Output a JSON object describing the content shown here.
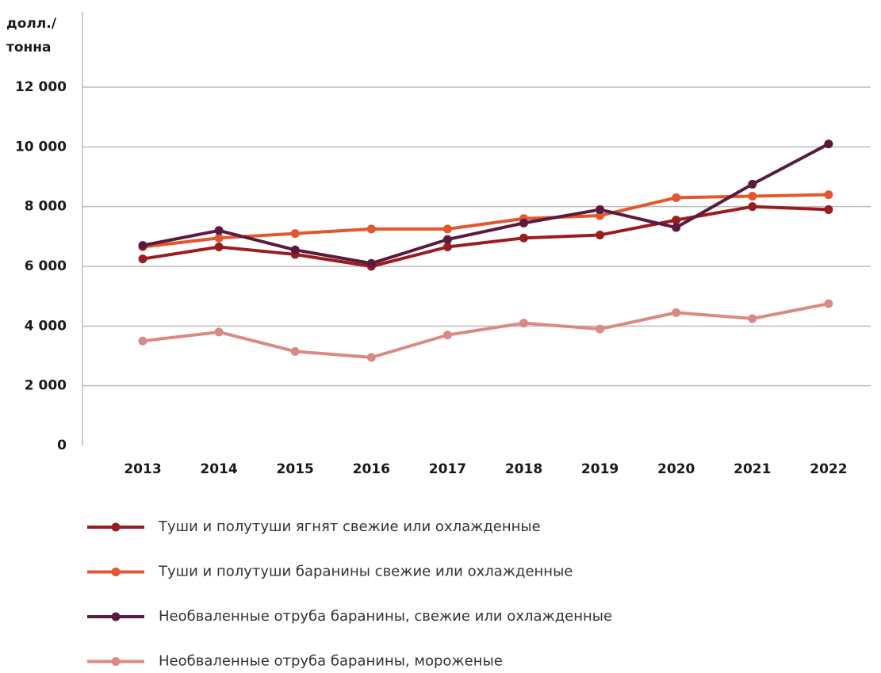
{
  "chart_data": {
    "type": "line",
    "ylabel": [
      "долл./",
      "тонна"
    ],
    "categories": [
      "2013",
      "2014",
      "2015",
      "2016",
      "2017",
      "2018",
      "2019",
      "2020",
      "2021",
      "2022"
    ],
    "series": [
      {
        "name": "Туши и полутуши ягнят свежие или охлажденные",
        "color": "#9b1c20",
        "values": [
          6250,
          6650,
          6400,
          6000,
          6650,
          6950,
          7050,
          7550,
          8000,
          7900
        ]
      },
      {
        "name": "Туши и полутуши баранины свежие или охлажденные",
        "color": "#e2572c",
        "values": [
          6650,
          6950,
          7100,
          7250,
          7250,
          7600,
          7700,
          8300,
          8350,
          8400
        ]
      },
      {
        "name": "Необваленные отруба баранины, свежие или охлажденные",
        "color": "#5a1a3e",
        "values": [
          6700,
          7200,
          6550,
          6100,
          6900,
          7450,
          7900,
          7300,
          8750,
          10100
        ]
      },
      {
        "name": "Необваленные отруба баранины, мороженые",
        "color": "#d98a84",
        "values": [
          3500,
          3800,
          3150,
          2950,
          3700,
          4100,
          3900,
          4450,
          4250,
          4750
        ]
      }
    ],
    "ylim": [
      0,
      12000
    ],
    "yticks": [
      0,
      {
        "value": 2000,
        "label": "2 000"
      },
      {
        "value": 4000,
        "label": "4 000"
      },
      {
        "value": 6000,
        "label": "6 000"
      },
      {
        "value": 8000,
        "label": "8 000"
      },
      {
        "value": 10000,
        "label": "10 000"
      },
      {
        "value": 12000,
        "label": "12 000"
      }
    ],
    "grid": true
  }
}
